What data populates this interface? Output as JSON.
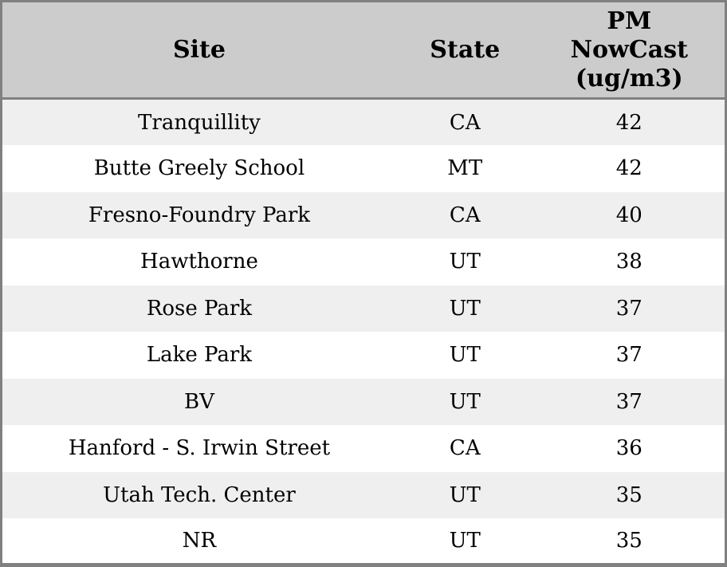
{
  "chart_data": {
    "type": "table",
    "columns": [
      {
        "key": "site",
        "label": "Site"
      },
      {
        "key": "state",
        "label": "State"
      },
      {
        "key": "pm",
        "label": "PM NowCast (ug/m3)"
      }
    ],
    "rows": [
      {
        "site": "Tranquillity",
        "state": "CA",
        "pm": "42"
      },
      {
        "site": "Butte Greely School",
        "state": "MT",
        "pm": "42"
      },
      {
        "site": "Fresno-Foundry Park",
        "state": "CA",
        "pm": "40"
      },
      {
        "site": "Hawthorne",
        "state": "UT",
        "pm": "38"
      },
      {
        "site": "Rose Park",
        "state": "UT",
        "pm": "37"
      },
      {
        "site": "Lake Park",
        "state": "UT",
        "pm": "37"
      },
      {
        "site": "BV",
        "state": "UT",
        "pm": "37"
      },
      {
        "site": "Hanford - S. Irwin Street",
        "state": "CA",
        "pm": "36"
      },
      {
        "site": "Utah Tech. Center",
        "state": "UT",
        "pm": "35"
      },
      {
        "site": "NR",
        "state": "UT",
        "pm": "35"
      }
    ],
    "layout": {
      "striped": true,
      "grid": "outer-border-and-header-separator-only",
      "text_align": "center"
    },
    "colors": {
      "header_bg": "#cccccc",
      "row_alt_bg": "#efefef",
      "row_bg": "#ffffff",
      "border": "#808080",
      "text": "#000000"
    }
  }
}
